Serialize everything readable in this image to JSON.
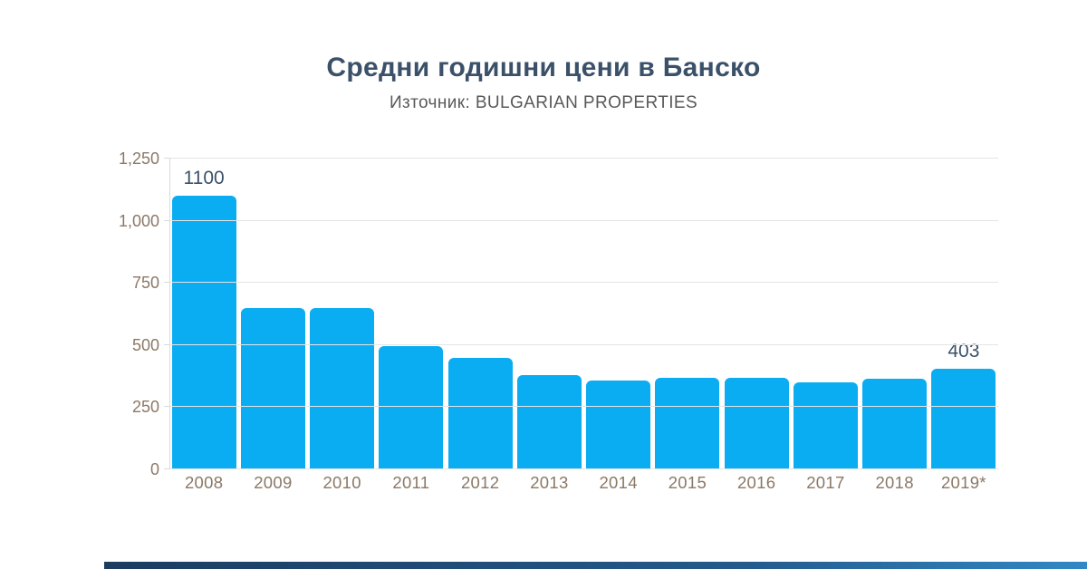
{
  "header": {
    "title": "Средни годишни цени в Банско",
    "subtitle": "Източник: BULGARIAN PROPERTIES"
  },
  "chart_data": {
    "type": "bar",
    "title": "Средни годишни цени в Банско",
    "subtitle": "Източник: BULGARIAN PROPERTIES",
    "categories": [
      "2008",
      "2009",
      "2010",
      "2011",
      "2012",
      "2013",
      "2014",
      "2015",
      "2016",
      "2017",
      "2018",
      "2019*"
    ],
    "values": [
      1100,
      650,
      650,
      495,
      450,
      378,
      358,
      370,
      367,
      350,
      365,
      403
    ],
    "point_labels": [
      "1100",
      "",
      "",
      "",
      "",
      "",
      "",
      "",
      "",
      "",
      "",
      "403"
    ],
    "xlabel": "",
    "ylabel": "",
    "ylim": [
      0,
      1250
    ],
    "yticks": [
      0,
      250,
      500,
      750,
      1000,
      1250
    ],
    "ytick_labels": [
      "0",
      "250",
      "500",
      "750",
      "1,000",
      "1,250"
    ],
    "grid": true,
    "legend": "none",
    "colors": {
      "bar": "#0aadf2",
      "title_text": "#3b5169",
      "value_label_text": "#3b5169",
      "axis_label_text": "#8c7866",
      "subtitle_text": "#58595b",
      "gridline": "#e4e4e4",
      "footer_bar_start": "#1c3c60",
      "footer_bar_end": "#3188c4"
    }
  }
}
